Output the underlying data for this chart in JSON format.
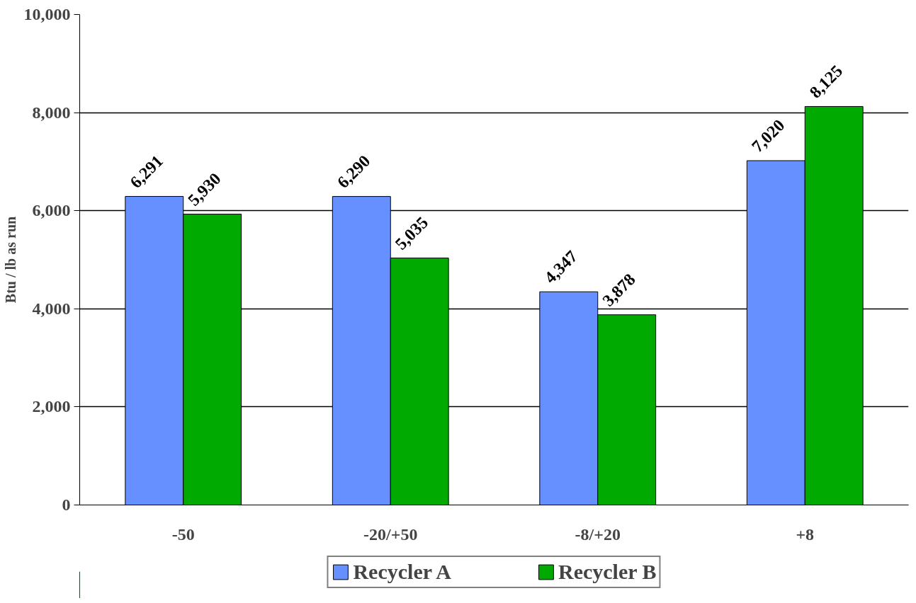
{
  "chart_data": {
    "type": "bar",
    "ylabel": "Btu / lb as run",
    "categories": [
      "-50",
      "-20/+50",
      "-8/+20",
      "+8"
    ],
    "series": [
      {
        "name": "Recycler A",
        "color": "#6690ff",
        "values": [
          6291,
          6290,
          4347,
          7020
        ],
        "value_labels": [
          "6,291",
          "6,290",
          "4,347",
          "7,020"
        ]
      },
      {
        "name": "Recycler B",
        "color": "#00aa00",
        "values": [
          5930,
          5035,
          3878,
          8125
        ],
        "value_labels": [
          "5,930",
          "5,035",
          "3,878",
          "8,125"
        ]
      }
    ],
    "ylim": [
      0,
      10000
    ],
    "yticks": [
      0,
      {
        "value": 2000,
        "label": "2,000"
      },
      {
        "value": 4000,
        "label": "4,000"
      },
      {
        "value": 6000,
        "label": "6,000"
      },
      {
        "value": 8000,
        "label": "8,000"
      },
      {
        "value": 10000,
        "label": "10,000"
      }
    ],
    "grid": "y",
    "legend": "bottom"
  }
}
